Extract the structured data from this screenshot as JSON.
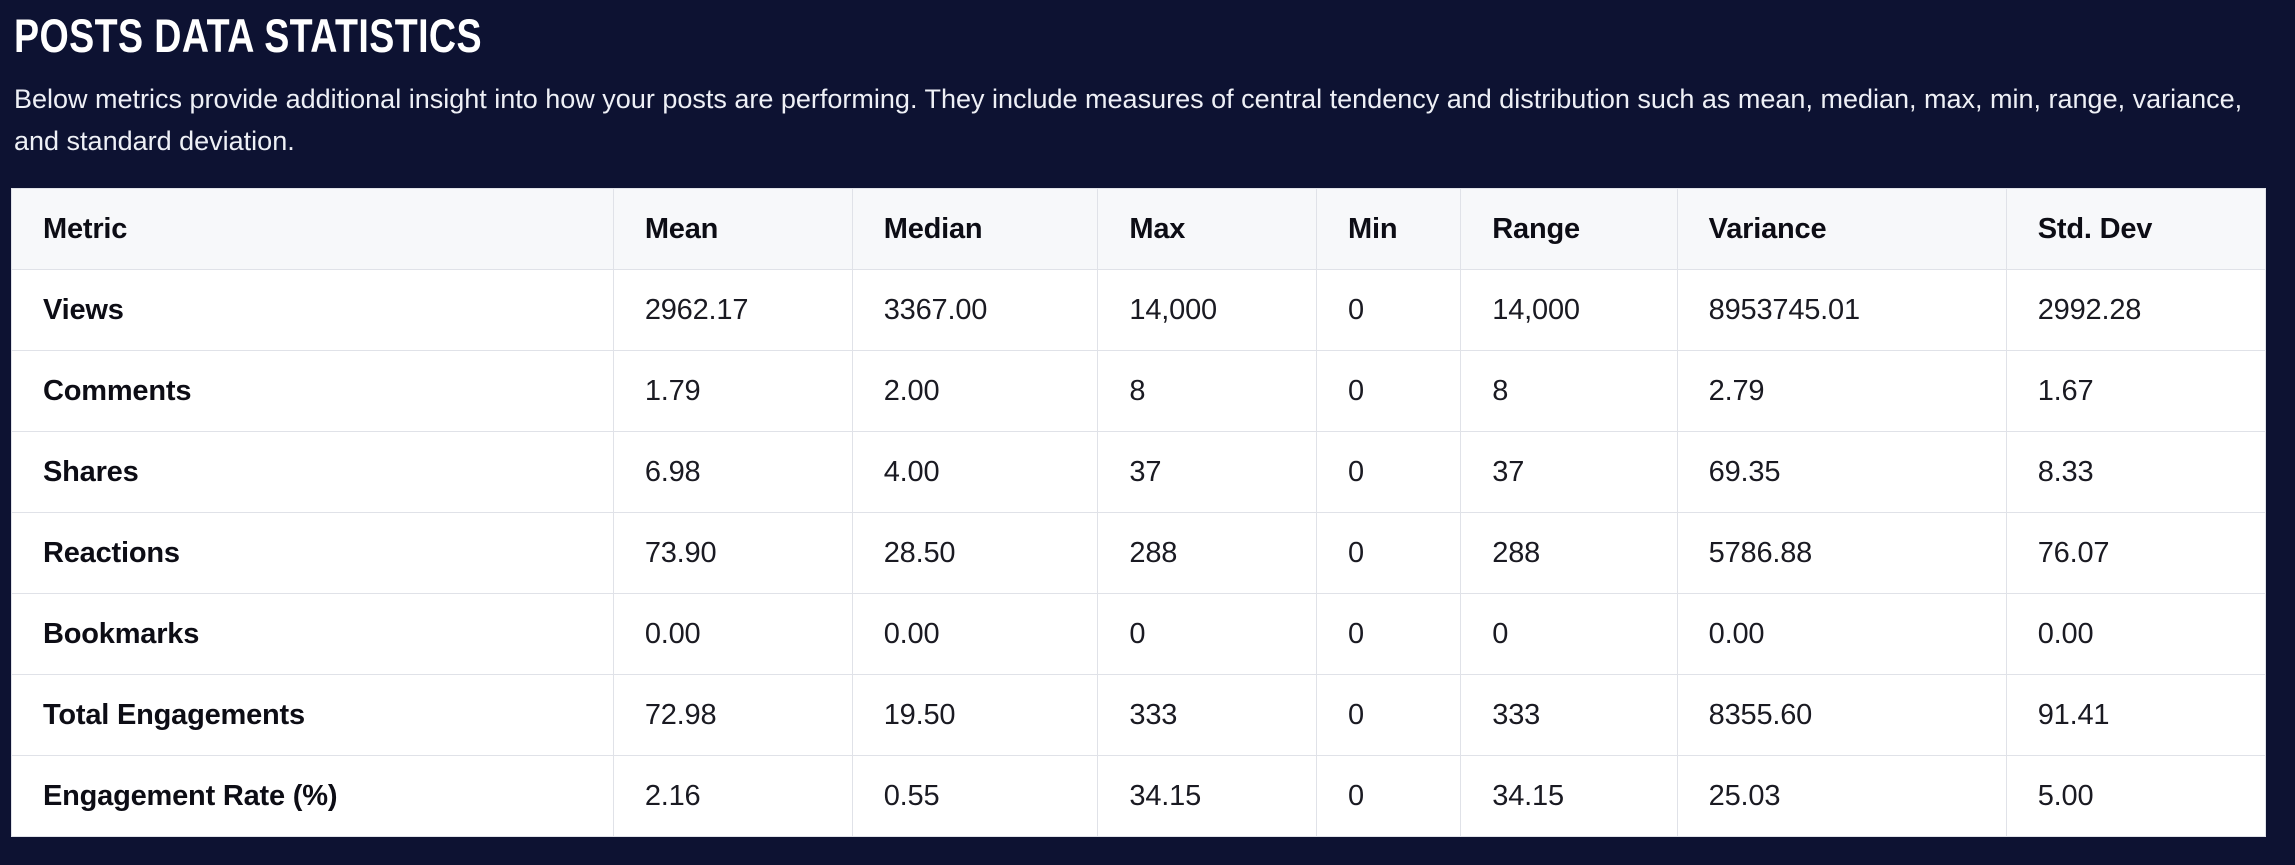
{
  "page": {
    "title": "POSTS DATA STATISTICS",
    "description": "Below metrics provide additional insight into how your posts are performing. They include measures of central tendency and distribution such as mean, median, max, min, range, variance, and standard deviation."
  },
  "colors": {
    "page_background": "#0d1232",
    "title_text": "#ffffff",
    "description_text": "#eef0f6",
    "table_background": "#ffffff",
    "header_row_background": "#f7f8fa",
    "table_border": "#e0e2e8",
    "cell_text": "#1a1a22",
    "bold_cell_text": "#0d0d15"
  },
  "table": {
    "columns": [
      "Metric",
      "Mean",
      "Median",
      "Max",
      "Min",
      "Range",
      "Variance",
      "Std. Dev"
    ],
    "rows": [
      {
        "metric": "Views",
        "values": [
          "2962.17",
          "3367.00",
          "14,000",
          "0",
          "14,000",
          "8953745.01",
          "2992.28"
        ]
      },
      {
        "metric": "Comments",
        "values": [
          "1.79",
          "2.00",
          "8",
          "0",
          "8",
          "2.79",
          "1.67"
        ]
      },
      {
        "metric": "Shares",
        "values": [
          "6.98",
          "4.00",
          "37",
          "0",
          "37",
          "69.35",
          "8.33"
        ]
      },
      {
        "metric": "Reactions",
        "values": [
          "73.90",
          "28.50",
          "288",
          "0",
          "288",
          "5786.88",
          "76.07"
        ]
      },
      {
        "metric": "Bookmarks",
        "values": [
          "0.00",
          "0.00",
          "0",
          "0",
          "0",
          "0.00",
          "0.00"
        ]
      },
      {
        "metric": "Total Engagements",
        "values": [
          "72.98",
          "19.50",
          "333",
          "0",
          "333",
          "8355.60",
          "91.41"
        ]
      },
      {
        "metric": "Engagement Rate (%)",
        "values": [
          "2.16",
          "0.55",
          "34.15",
          "0",
          "34.15",
          "25.03",
          "5.00"
        ]
      }
    ]
  }
}
